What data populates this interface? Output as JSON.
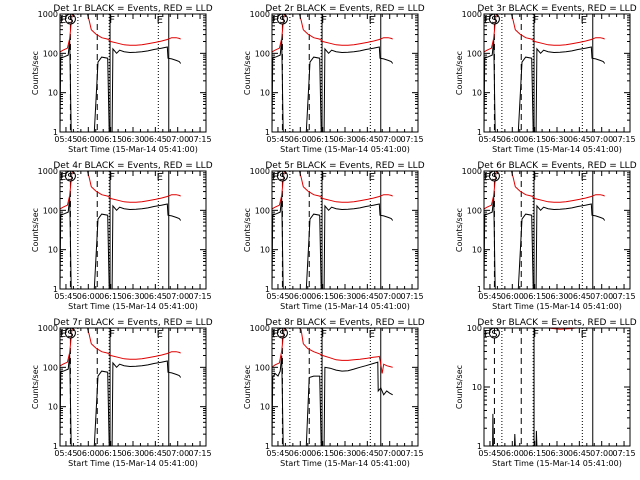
{
  "chart_data": [
    {
      "type": "line",
      "title": "Det 1r BLACK = Events, RED = LLD",
      "xlabel": "Start Time (15-Mar-14 05:41:00)",
      "ylabel": "Counts/sec",
      "yscale": "log",
      "ylim": [
        1,
        1000
      ],
      "xlim": [
        "05:41",
        "07:19"
      ],
      "xticks": [
        "05:45",
        "06:00",
        "06:15",
        "06:30",
        "06:45",
        "07:00",
        "07:15"
      ],
      "yticks": [
        "1",
        "10",
        "100",
        "1000"
      ],
      "markers": [
        "E",
        "S",
        "F",
        "E"
      ],
      "series": [
        {
          "name": "Events",
          "color": "#000000",
          "profile": "a"
        },
        {
          "name": "LLD",
          "color": "#e00000",
          "profile": "a"
        }
      ]
    },
    {
      "type": "line",
      "title": "Det 2r BLACK = Events, RED = LLD",
      "xlabel": "Start Time (15-Mar-14 05:41:00)",
      "ylabel": "Counts/sec",
      "yscale": "log",
      "ylim": [
        1,
        1000
      ],
      "xlim": [
        "05:41",
        "07:19"
      ],
      "xticks": [
        "05:45",
        "06:00",
        "06:15",
        "06:30",
        "06:45",
        "07:00",
        "07:15"
      ],
      "yticks": [
        "1",
        "10",
        "100",
        "1000"
      ],
      "markers": [
        "E",
        "S",
        "F",
        "E"
      ],
      "series": [
        {
          "name": "Events",
          "color": "#000000",
          "profile": "a"
        },
        {
          "name": "LLD",
          "color": "#e00000",
          "profile": "a"
        }
      ]
    },
    {
      "type": "line",
      "title": "Det 3r BLACK = Events, RED = LLD",
      "xlabel": "Start Time (15-Mar-14 05:41:00)",
      "ylabel": "Counts/sec",
      "yscale": "log",
      "ylim": [
        1,
        1000
      ],
      "xlim": [
        "05:41",
        "07:19"
      ],
      "xticks": [
        "05:45",
        "06:00",
        "06:15",
        "06:30",
        "06:45",
        "07:00",
        "07:15"
      ],
      "yticks": [
        "1",
        "10",
        "100",
        "1000"
      ],
      "markers": [
        "E",
        "S",
        "F",
        "E"
      ],
      "series": [
        {
          "name": "Events",
          "color": "#000000",
          "profile": "a"
        },
        {
          "name": "LLD",
          "color": "#e00000",
          "profile": "a"
        }
      ]
    },
    {
      "type": "line",
      "title": "Det 4r BLACK = Events, RED = LLD",
      "xlabel": "Start Time (15-Mar-14 05:41:00)",
      "ylabel": "Counts/sec",
      "yscale": "log",
      "ylim": [
        1,
        1000
      ],
      "xlim": [
        "05:41",
        "07:19"
      ],
      "xticks": [
        "05:45",
        "06:00",
        "06:15",
        "06:30",
        "06:45",
        "07:00",
        "07:15"
      ],
      "yticks": [
        "1",
        "10",
        "100",
        "1000"
      ],
      "markers": [
        "E",
        "S",
        "F",
        "E"
      ],
      "series": [
        {
          "name": "Events",
          "color": "#000000",
          "profile": "a"
        },
        {
          "name": "LLD",
          "color": "#e00000",
          "profile": "a"
        }
      ]
    },
    {
      "type": "line",
      "title": "Det 5r BLACK = Events, RED = LLD",
      "xlabel": "Start Time (15-Mar-14 05:41:00)",
      "ylabel": "Counts/sec",
      "yscale": "log",
      "ylim": [
        1,
        1000
      ],
      "xlim": [
        "05:41",
        "07:19"
      ],
      "xticks": [
        "05:45",
        "06:00",
        "06:15",
        "06:30",
        "06:45",
        "07:00",
        "07:15"
      ],
      "yticks": [
        "1",
        "10",
        "100",
        "1000"
      ],
      "markers": [
        "E",
        "S",
        "F",
        "E"
      ],
      "series": [
        {
          "name": "Events",
          "color": "#000000",
          "profile": "a"
        },
        {
          "name": "LLD",
          "color": "#e00000",
          "profile": "a"
        }
      ]
    },
    {
      "type": "line",
      "title": "Det 6r BLACK = Events, RED = LLD",
      "xlabel": "Start Time (15-Mar-14 05:41:00)",
      "ylabel": "Counts/sec",
      "yscale": "log",
      "ylim": [
        1,
        1000
      ],
      "xlim": [
        "05:41",
        "07:19"
      ],
      "xticks": [
        "05:45",
        "06:00",
        "06:15",
        "06:30",
        "06:45",
        "07:00",
        "07:15"
      ],
      "yticks": [
        "1",
        "10",
        "100",
        "1000"
      ],
      "markers": [
        "E",
        "S",
        "F",
        "E"
      ],
      "series": [
        {
          "name": "Events",
          "color": "#000000",
          "profile": "a"
        },
        {
          "name": "LLD",
          "color": "#e00000",
          "profile": "a"
        }
      ]
    },
    {
      "type": "line",
      "title": "Det 7r BLACK = Events, RED = LLD",
      "xlabel": "Start Time (15-Mar-14 05:41:00)",
      "ylabel": "Counts/sec",
      "yscale": "log",
      "ylim": [
        1,
        1000
      ],
      "xlim": [
        "05:41",
        "07:19"
      ],
      "xticks": [
        "05:45",
        "06:00",
        "06:15",
        "06:30",
        "06:45",
        "07:00",
        "07:15"
      ],
      "yticks": [
        "1",
        "10",
        "100",
        "1000"
      ],
      "markers": [
        "E",
        "S",
        "F",
        "E"
      ],
      "series": [
        {
          "name": "Events",
          "color": "#000000",
          "profile": "a"
        },
        {
          "name": "LLD",
          "color": "#e00000",
          "profile": "a"
        }
      ]
    },
    {
      "type": "line",
      "title": "Det 8r BLACK = Events, RED = LLD",
      "xlabel": "Start Time (15-Mar-14 05:41:00)",
      "ylabel": "Counts/sec",
      "yscale": "log",
      "ylim": [
        1,
        1000
      ],
      "xlim": [
        "05:41",
        "07:19"
      ],
      "xticks": [
        "05:45",
        "06:00",
        "06:15",
        "06:30",
        "06:45",
        "07:00",
        "07:15"
      ],
      "yticks": [
        "1",
        "10",
        "100",
        "1000"
      ],
      "markers": [
        "E",
        "S",
        "F",
        "E"
      ],
      "series": [
        {
          "name": "Events",
          "color": "#000000",
          "profile": "b"
        },
        {
          "name": "LLD",
          "color": "#e00000",
          "profile": "b"
        }
      ]
    },
    {
      "type": "line",
      "title": "Det 9r BLACK = Events, RED = LLD",
      "xlabel": "Start Time (15-Mar-14 05:41:00)",
      "ylabel": "Counts/sec",
      "yscale": "log",
      "ylim": [
        1,
        100
      ],
      "xlim": [
        "05:41",
        "07:19"
      ],
      "xticks": [
        "05:45",
        "06:00",
        "06:15",
        "06:30",
        "06:45",
        "07:00",
        "07:15"
      ],
      "yticks": [
        "1",
        "10",
        "100"
      ],
      "markers": [
        "E",
        "S",
        "F",
        "E"
      ],
      "series": [
        {
          "name": "Events",
          "color": "#000000",
          "profile": "c"
        },
        {
          "name": "LLD",
          "color": "#e00000",
          "profile": "c"
        }
      ]
    }
  ]
}
